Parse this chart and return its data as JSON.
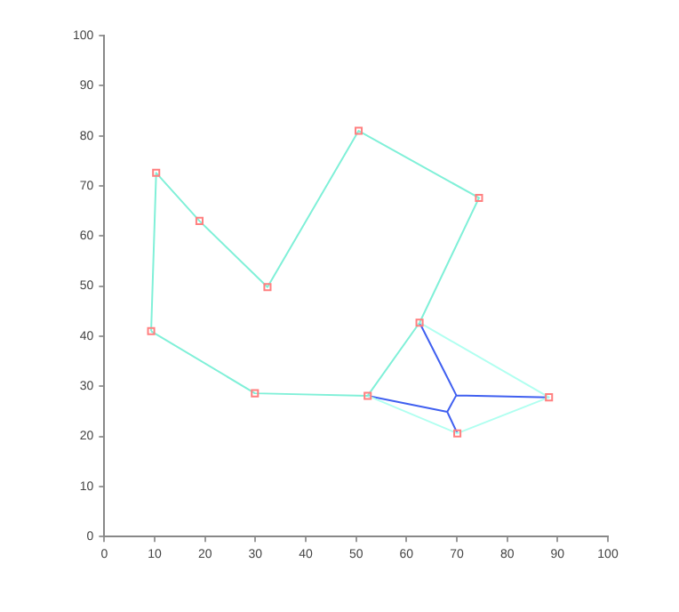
{
  "chart_data": {
    "type": "line",
    "xlim": [
      0,
      100
    ],
    "ylim": [
      0,
      100
    ],
    "xticks": [
      0,
      10,
      20,
      30,
      40,
      50,
      60,
      70,
      80,
      90,
      100
    ],
    "yticks": [
      0,
      10,
      20,
      30,
      40,
      50,
      60,
      70,
      80,
      90,
      100
    ],
    "grid": false,
    "legend": false,
    "series": [
      {
        "color": "#80f0d8",
        "marker": "none",
        "x": [
          9.3,
          10.3,
          18.9,
          32.4,
          50.5,
          74.4,
          62.6
        ],
        "values": [
          41,
          72.6,
          63,
          49.8,
          81,
          67.6,
          42.7
        ]
      },
      {
        "color": "#80f0d8",
        "marker": "none",
        "x": [
          62.6,
          52.3,
          29.9,
          9.3
        ],
        "values": [
          42.7,
          28.1,
          28.6,
          41
        ]
      },
      {
        "color": "#b0fff0",
        "marker": "none",
        "x": [
          62.6,
          88.3,
          70.1,
          52.3
        ],
        "values": [
          42.7,
          27.8,
          20.6,
          28.1
        ]
      },
      {
        "color": "#4060f0",
        "marker": "none",
        "x": [
          62.6,
          69.9,
          88.3,
          null,
          69.9,
          68.1,
          52.3,
          null,
          68.1,
          70.1
        ],
        "values": [
          42.7,
          28.2,
          27.8,
          null,
          28.2,
          24.9,
          28.1,
          null,
          24.9,
          20.6
        ]
      },
      {
        "type": "scatter",
        "color": "#ff8080",
        "marker": "square",
        "x": [
          10.3,
          18.9,
          32.4,
          50.5,
          74.4,
          62.6,
          52.3,
          29.9,
          9.3,
          70.1,
          88.3
        ],
        "values": [
          72.6,
          63,
          49.8,
          81,
          67.6,
          42.7,
          28.1,
          28.6,
          41,
          20.6,
          27.8
        ]
      }
    ]
  }
}
